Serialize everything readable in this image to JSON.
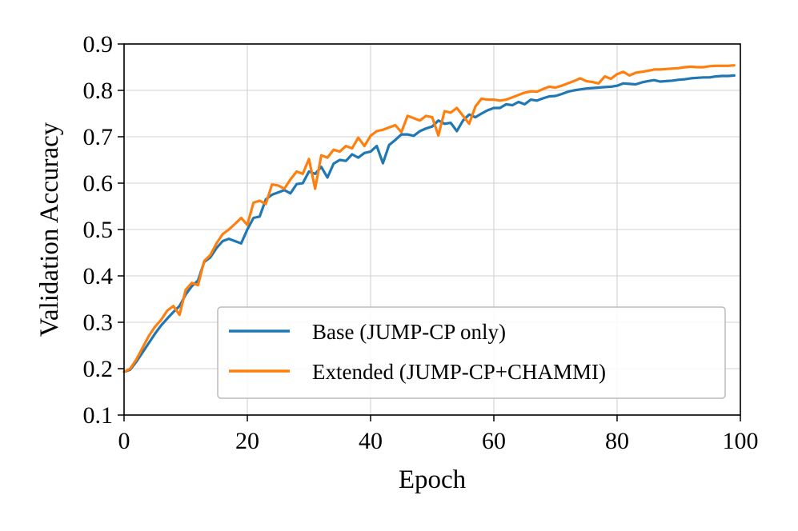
{
  "chart_data": {
    "type": "line",
    "xlabel": "Epoch",
    "ylabel": "Validation Accuracy",
    "xlim": [
      0,
      100
    ],
    "ylim": [
      0.1,
      0.9
    ],
    "xticks": [
      "0",
      "20",
      "40",
      "60",
      "80",
      "100"
    ],
    "yticks": [
      "0.1",
      "0.2",
      "0.3",
      "0.4",
      "0.5",
      "0.6",
      "0.7",
      "0.8",
      "0.9"
    ],
    "grid": true,
    "legend_position": "lower-right",
    "x": [
      0,
      1,
      2,
      3,
      4,
      5,
      6,
      7,
      8,
      9,
      10,
      11,
      12,
      13,
      14,
      15,
      16,
      17,
      18,
      19,
      20,
      21,
      22,
      23,
      24,
      25,
      26,
      27,
      28,
      29,
      30,
      31,
      32,
      33,
      34,
      35,
      36,
      37,
      38,
      39,
      40,
      41,
      42,
      43,
      44,
      45,
      46,
      47,
      48,
      49,
      50,
      51,
      52,
      53,
      54,
      55,
      56,
      57,
      58,
      59,
      60,
      61,
      62,
      63,
      64,
      65,
      66,
      67,
      68,
      69,
      70,
      71,
      72,
      73,
      74,
      75,
      76,
      77,
      78,
      79,
      80,
      81,
      82,
      83,
      84,
      85,
      86,
      87,
      88,
      89,
      90,
      91,
      92,
      93,
      94,
      95,
      96,
      97,
      98,
      99
    ],
    "series": [
      {
        "name": "Base (JUMP-CP only)",
        "color": "#1f77b4",
        "values": [
          0.193,
          0.198,
          0.215,
          0.235,
          0.255,
          0.275,
          0.293,
          0.308,
          0.322,
          0.335,
          0.36,
          0.378,
          0.39,
          0.43,
          0.44,
          0.46,
          0.475,
          0.48,
          0.475,
          0.47,
          0.5,
          0.525,
          0.528,
          0.565,
          0.575,
          0.58,
          0.585,
          0.578,
          0.598,
          0.6,
          0.625,
          0.62,
          0.635,
          0.612,
          0.642,
          0.65,
          0.648,
          0.662,
          0.655,
          0.665,
          0.668,
          0.68,
          0.643,
          0.682,
          0.693,
          0.705,
          0.705,
          0.702,
          0.712,
          0.718,
          0.722,
          0.735,
          0.728,
          0.73,
          0.712,
          0.735,
          0.748,
          0.742,
          0.75,
          0.757,
          0.762,
          0.762,
          0.77,
          0.768,
          0.775,
          0.77,
          0.78,
          0.778,
          0.783,
          0.787,
          0.788,
          0.792,
          0.797,
          0.8,
          0.802,
          0.804,
          0.805,
          0.806,
          0.807,
          0.808,
          0.81,
          0.815,
          0.814,
          0.813,
          0.817,
          0.82,
          0.822,
          0.819,
          0.82,
          0.821,
          0.823,
          0.824,
          0.826,
          0.827,
          0.828,
          0.828,
          0.83,
          0.831,
          0.831,
          0.832
        ]
      },
      {
        "name": "Extended (JUMP-CP+CHAMMI)",
        "color": "#ff7f0e",
        "values": [
          0.193,
          0.2,
          0.22,
          0.245,
          0.27,
          0.29,
          0.305,
          0.325,
          0.335,
          0.316,
          0.37,
          0.385,
          0.38,
          0.432,
          0.445,
          0.47,
          0.49,
          0.5,
          0.512,
          0.525,
          0.51,
          0.558,
          0.562,
          0.555,
          0.597,
          0.595,
          0.588,
          0.608,
          0.625,
          0.62,
          0.652,
          0.588,
          0.66,
          0.655,
          0.672,
          0.668,
          0.68,
          0.675,
          0.698,
          0.68,
          0.702,
          0.712,
          0.715,
          0.72,
          0.725,
          0.71,
          0.745,
          0.74,
          0.735,
          0.745,
          0.742,
          0.703,
          0.755,
          0.752,
          0.762,
          0.745,
          0.728,
          0.765,
          0.782,
          0.78,
          0.78,
          0.778,
          0.78,
          0.785,
          0.79,
          0.795,
          0.798,
          0.797,
          0.803,
          0.808,
          0.806,
          0.81,
          0.815,
          0.82,
          0.826,
          0.82,
          0.818,
          0.815,
          0.83,
          0.825,
          0.835,
          0.84,
          0.832,
          0.838,
          0.84,
          0.842,
          0.845,
          0.845,
          0.846,
          0.847,
          0.848,
          0.85,
          0.851,
          0.85,
          0.85,
          0.852,
          0.853,
          0.853,
          0.853,
          0.854
        ]
      }
    ]
  }
}
